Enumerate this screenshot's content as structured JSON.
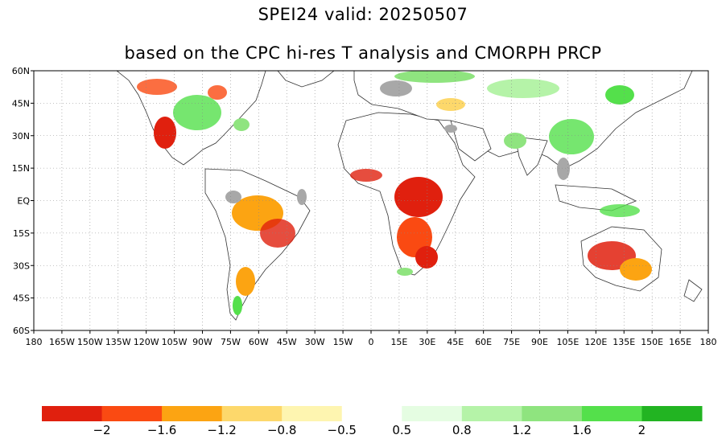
{
  "title": "SPEI24   valid: 20250507",
  "subtitle": "based on the CPC hi-res T analysis and CMORPH PRCP",
  "lat_labels": [
    "60N",
    "45N",
    "30N",
    "15N",
    "EQ",
    "15S",
    "30S",
    "45S",
    "60S"
  ],
  "lon_labels": [
    "180",
    "165W",
    "150W",
    "135W",
    "120W",
    "105W",
    "90W",
    "75W",
    "60W",
    "45W",
    "30W",
    "15W",
    "0",
    "15E",
    "30E",
    "45E",
    "60E",
    "75E",
    "90E",
    "105E",
    "120E",
    "135E",
    "150E",
    "165E",
    "180"
  ],
  "colorbar": {
    "colors": [
      "#e0200e",
      "#fa4a12",
      "#fca412",
      "#fdd86b",
      "#fef5b0",
      "#ffffff",
      "#e5fde2",
      "#b5f3a8",
      "#8fe47f",
      "#54e04b",
      "#22b422"
    ],
    "labels": [
      "−2",
      "−1.6",
      "−1.2",
      "−0.8",
      "−0.5",
      "0.5",
      "0.8",
      "1.2",
      "1.6",
      "2"
    ]
  }
}
